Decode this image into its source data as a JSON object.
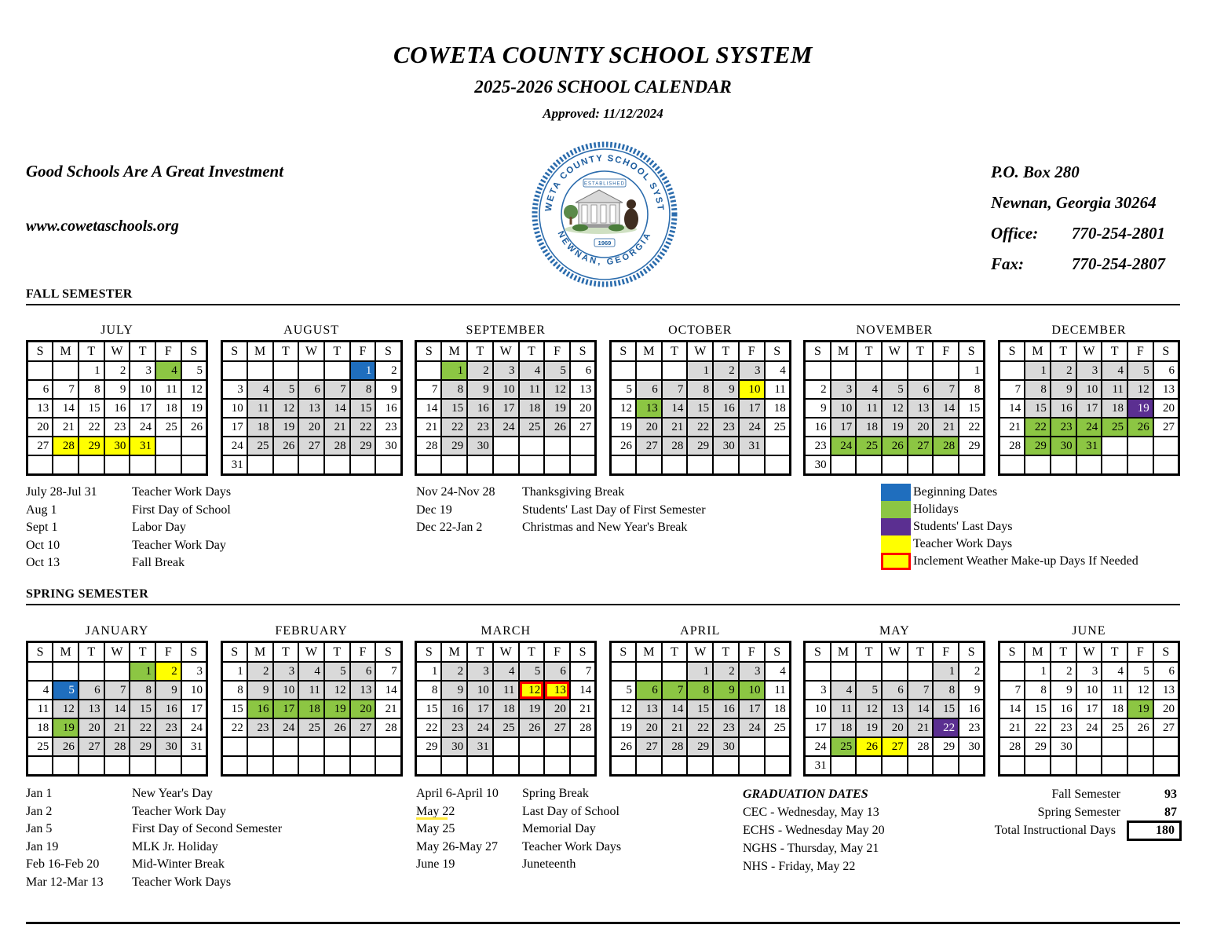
{
  "page": {
    "title": "COWETA COUNTY SCHOOL SYSTEM",
    "subtitle": "2025-2026 SCHOOL CALENDAR",
    "approved": "Approved: 11/12/2024",
    "tagline": "Good Schools Are A Great Investment",
    "website": "www.cowetaschools.org",
    "contact": {
      "line1": "P.O. Box 280",
      "line2": "Newnan, Georgia 30264",
      "office_label": "Office:",
      "office_value": "770-254-2801",
      "fax_label": "Fax:",
      "fax_value": "770-254-2807"
    },
    "logo": {
      "ring_top": "COWETA COUNTY SCHOOL SYSTEM",
      "ring_bottom": "NEWNAN, GEORGIA",
      "established": "ESTABLISHED",
      "year": "1969"
    }
  },
  "colors": {
    "begin": "#1F6EBE",
    "holiday": "#8CC643",
    "last": "#5B2F91",
    "workday": "#FFFF00",
    "school": "#D9D9D9",
    "makeup_border": "#FF0000"
  },
  "weekday_headers": [
    "S",
    "M",
    "T",
    "W",
    "T",
    "F",
    "S"
  ],
  "fall": {
    "heading": "FALL SEMESTER",
    "months": [
      {
        "name": "JULY",
        "start": 2,
        "days": 31,
        "marks": {
          "holiday": [
            4
          ],
          "workday": [
            28,
            29,
            30,
            31
          ]
        }
      },
      {
        "name": "AUGUST",
        "start": 5,
        "days": 31,
        "marks": {
          "begin": [
            1
          ],
          "school": [
            4,
            5,
            6,
            7,
            8,
            11,
            12,
            13,
            14,
            15,
            18,
            19,
            20,
            21,
            22,
            25,
            26,
            27,
            28,
            29
          ]
        }
      },
      {
        "name": "SEPTEMBER",
        "start": 1,
        "days": 30,
        "marks": {
          "holiday": [
            1
          ],
          "school": [
            2,
            3,
            4,
            5,
            8,
            9,
            10,
            11,
            12,
            15,
            16,
            17,
            18,
            19,
            22,
            23,
            24,
            25,
            26,
            29,
            30
          ]
        }
      },
      {
        "name": "OCTOBER",
        "start": 3,
        "days": 31,
        "marks": {
          "workday": [
            10
          ],
          "holiday": [
            13
          ],
          "school": [
            1,
            2,
            3,
            6,
            7,
            8,
            9,
            14,
            15,
            16,
            17,
            20,
            21,
            22,
            23,
            24,
            27,
            28,
            29,
            30,
            31
          ]
        }
      },
      {
        "name": "NOVEMBER",
        "start": 6,
        "days": 30,
        "marks": {
          "holiday": [
            24,
            25,
            26,
            27,
            28
          ],
          "school": [
            3,
            4,
            5,
            6,
            7,
            10,
            11,
            12,
            13,
            14,
            17,
            18,
            19,
            20,
            21
          ]
        }
      },
      {
        "name": "DECEMBER",
        "start": 1,
        "days": 31,
        "marks": {
          "last": [
            19
          ],
          "holiday": [
            22,
            23,
            24,
            25,
            26,
            29,
            30,
            31
          ],
          "school": [
            1,
            2,
            3,
            4,
            5,
            8,
            9,
            10,
            11,
            12,
            15,
            16,
            17,
            18
          ]
        }
      }
    ],
    "notes_col1": [
      {
        "date": "July 28-Jul 31",
        "desc": "Teacher Work Days"
      },
      {
        "date": "Aug 1",
        "desc": "First Day of School"
      },
      {
        "date": "Sept 1",
        "desc": "Labor Day"
      },
      {
        "date": "Oct 10",
        "desc": "Teacher Work Day"
      },
      {
        "date": "Oct 13",
        "desc": "Fall Break"
      }
    ],
    "notes_col2": [
      {
        "date": "Nov 24-Nov 28",
        "desc": "Thanksgiving Break"
      },
      {
        "date": "Dec 19",
        "desc": "Students' Last Day of First Semester"
      },
      {
        "date": "Dec 22-Jan 2",
        "desc": "Christmas and New Year's Break"
      }
    ],
    "legend": [
      {
        "type": "begin",
        "label": "Beginning Dates"
      },
      {
        "type": "holiday",
        "label": "Holidays"
      },
      {
        "type": "last",
        "label": "Students' Last Days"
      },
      {
        "type": "workday",
        "label": "Teacher Work Days"
      },
      {
        "type": "makeup",
        "label": "Inclement Weather Make-up Days If Needed"
      }
    ]
  },
  "spring": {
    "heading": "SPRING SEMESTER",
    "months": [
      {
        "name": "JANUARY",
        "start": 4,
        "days": 31,
        "marks": {
          "holiday": [
            1,
            19
          ],
          "workday": [
            2
          ],
          "begin": [
            5
          ],
          "school": [
            6,
            7,
            8,
            9,
            12,
            13,
            14,
            15,
            16,
            20,
            21,
            22,
            23,
            26,
            27,
            28,
            29,
            30
          ]
        }
      },
      {
        "name": "FEBRUARY",
        "start": 0,
        "days": 28,
        "marks": {
          "holiday": [
            16,
            17,
            18,
            19,
            20
          ],
          "school": [
            2,
            3,
            4,
            5,
            6,
            9,
            10,
            11,
            12,
            13,
            23,
            24,
            25,
            26,
            27
          ]
        }
      },
      {
        "name": "MARCH",
        "start": 0,
        "days": 31,
        "marks": {
          "makeup": [
            12,
            13
          ],
          "school": [
            2,
            3,
            4,
            5,
            6,
            9,
            10,
            11,
            16,
            17,
            18,
            19,
            20,
            23,
            24,
            25,
            26,
            27,
            30,
            31
          ]
        }
      },
      {
        "name": "APRIL",
        "start": 3,
        "days": 30,
        "marks": {
          "holiday": [
            6,
            7,
            8,
            9,
            10
          ],
          "school": [
            1,
            2,
            3,
            13,
            14,
            15,
            16,
            17,
            20,
            21,
            22,
            23,
            24,
            27,
            28,
            29,
            30
          ]
        }
      },
      {
        "name": "MAY",
        "start": 5,
        "days": 31,
        "marks": {
          "last": [
            22
          ],
          "holiday": [
            25
          ],
          "workday": [
            26,
            27
          ],
          "school": [
            1,
            4,
            5,
            6,
            7,
            8,
            11,
            12,
            13,
            14,
            15,
            18,
            19,
            20,
            21
          ]
        }
      },
      {
        "name": "JUNE",
        "start": 1,
        "days": 30,
        "marks": {
          "holiday": [
            19
          ]
        }
      }
    ],
    "notes_col1": [
      {
        "date": "Jan 1",
        "desc": "New Year's Day"
      },
      {
        "date": "Jan 2",
        "desc": "Teacher Work Day"
      },
      {
        "date": "Jan 5",
        "desc": "First Day of Second Semester"
      },
      {
        "date": "Jan 19",
        "desc": "MLK Jr. Holiday"
      },
      {
        "date": "Feb 16-Feb 20",
        "desc": "Mid-Winter Break"
      },
      {
        "date": "Mar 12-Mar 13",
        "desc": "Teacher Work Days"
      }
    ],
    "notes_col2": [
      {
        "date": "April 6-April 10",
        "desc": "Spring Break"
      },
      {
        "date": "May 22",
        "desc": "Last Day of School",
        "underline": true
      },
      {
        "date": "May 25",
        "desc": "Memorial Day"
      },
      {
        "date": "May 26-May 27",
        "desc": "Teacher Work Days"
      },
      {
        "date": "June 19",
        "desc": "Juneteenth"
      }
    ],
    "graduation": {
      "heading": "GRADUATION DATES",
      "lines": [
        "CEC - Wednesday, May 13",
        "ECHS - Wednesday May 20",
        "NGHS - Thursday, May 21",
        "NHS - Friday, May 22"
      ]
    },
    "totals": [
      {
        "label": "Fall Semester",
        "value": "93"
      },
      {
        "label": "Spring Semester",
        "value": "87"
      },
      {
        "label": "Total Instructional Days",
        "value": "180",
        "boxed": true
      }
    ]
  }
}
